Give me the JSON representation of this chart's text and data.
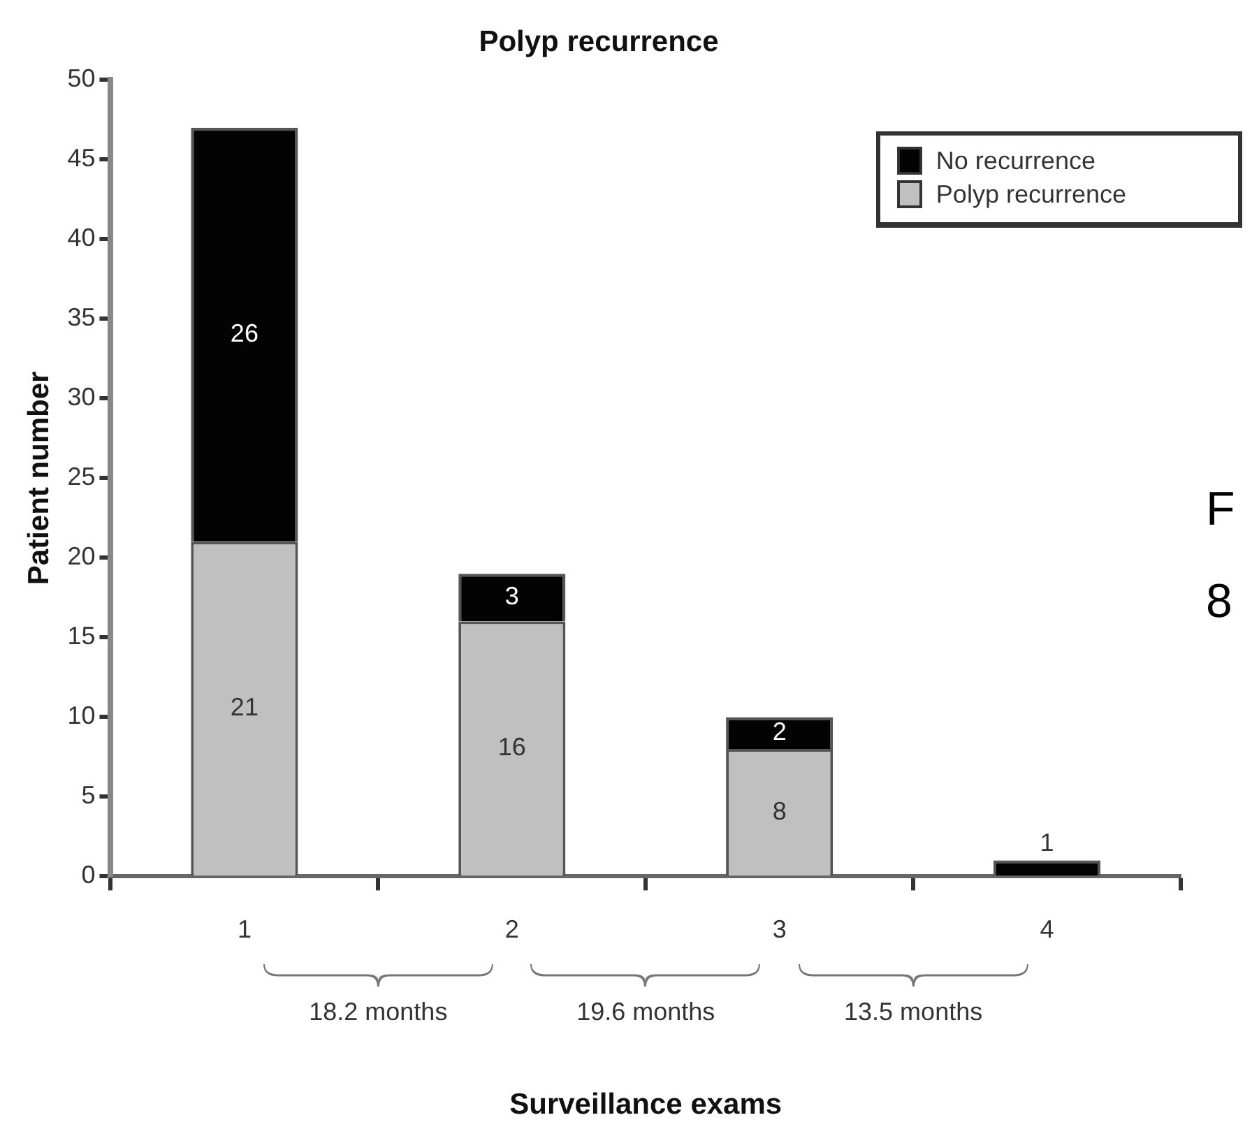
{
  "chart_data": {
    "type": "bar",
    "title": "Polyp recurrence",
    "xlabel": "Surveillance exams",
    "ylabel": "Patient number",
    "categories": [
      "1",
      "2",
      "3",
      "4"
    ],
    "series": [
      {
        "name": "Polyp recurrence",
        "color": "#c0c0c0",
        "values": [
          21,
          16,
          8,
          null
        ]
      },
      {
        "name": "No recurrence",
        "color": "#030303",
        "values": [
          26,
          3,
          2,
          1
        ]
      }
    ],
    "stacked": true,
    "ylim": [
      0,
      50
    ],
    "yticks": [
      0,
      5,
      10,
      15,
      20,
      25,
      30,
      35,
      40,
      45,
      50
    ],
    "grid": false,
    "legend": "top right",
    "data_labels": true,
    "annotations": [
      "18.2 months",
      "19.6 months",
      "13.5 months",
      "F",
      "8"
    ]
  }
}
